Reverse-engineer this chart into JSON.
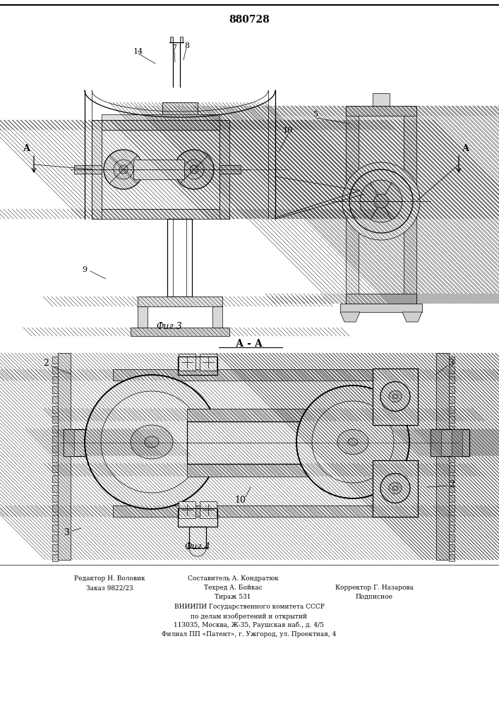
{
  "patent_number": "880728",
  "fig3_label": "Фиг.3",
  "fig4_label": "Фиг.4",
  "section_label": "А - А",
  "bg_color": "#ffffff",
  "line_color": "#000000",
  "footer_col1": [
    "Редактор Н. Воловик",
    "Заказ 9822/23"
  ],
  "footer_col2": [
    "Составитель А. Кондратюк",
    "Техред А. Бойкас",
    "Тираж 531"
  ],
  "footer_col3": [
    "Корректор Г. Назарова",
    "Подписное"
  ],
  "footer_center": [
    "ВНИИПИ Государственного комитета СССР",
    "по делам изобретений и открытий",
    "113035, Москва, Ж-35, Раушская наб., д. 4/5",
    "Филиал ПП «Патент», г. Ужгород, ул. Проектная, 4"
  ]
}
